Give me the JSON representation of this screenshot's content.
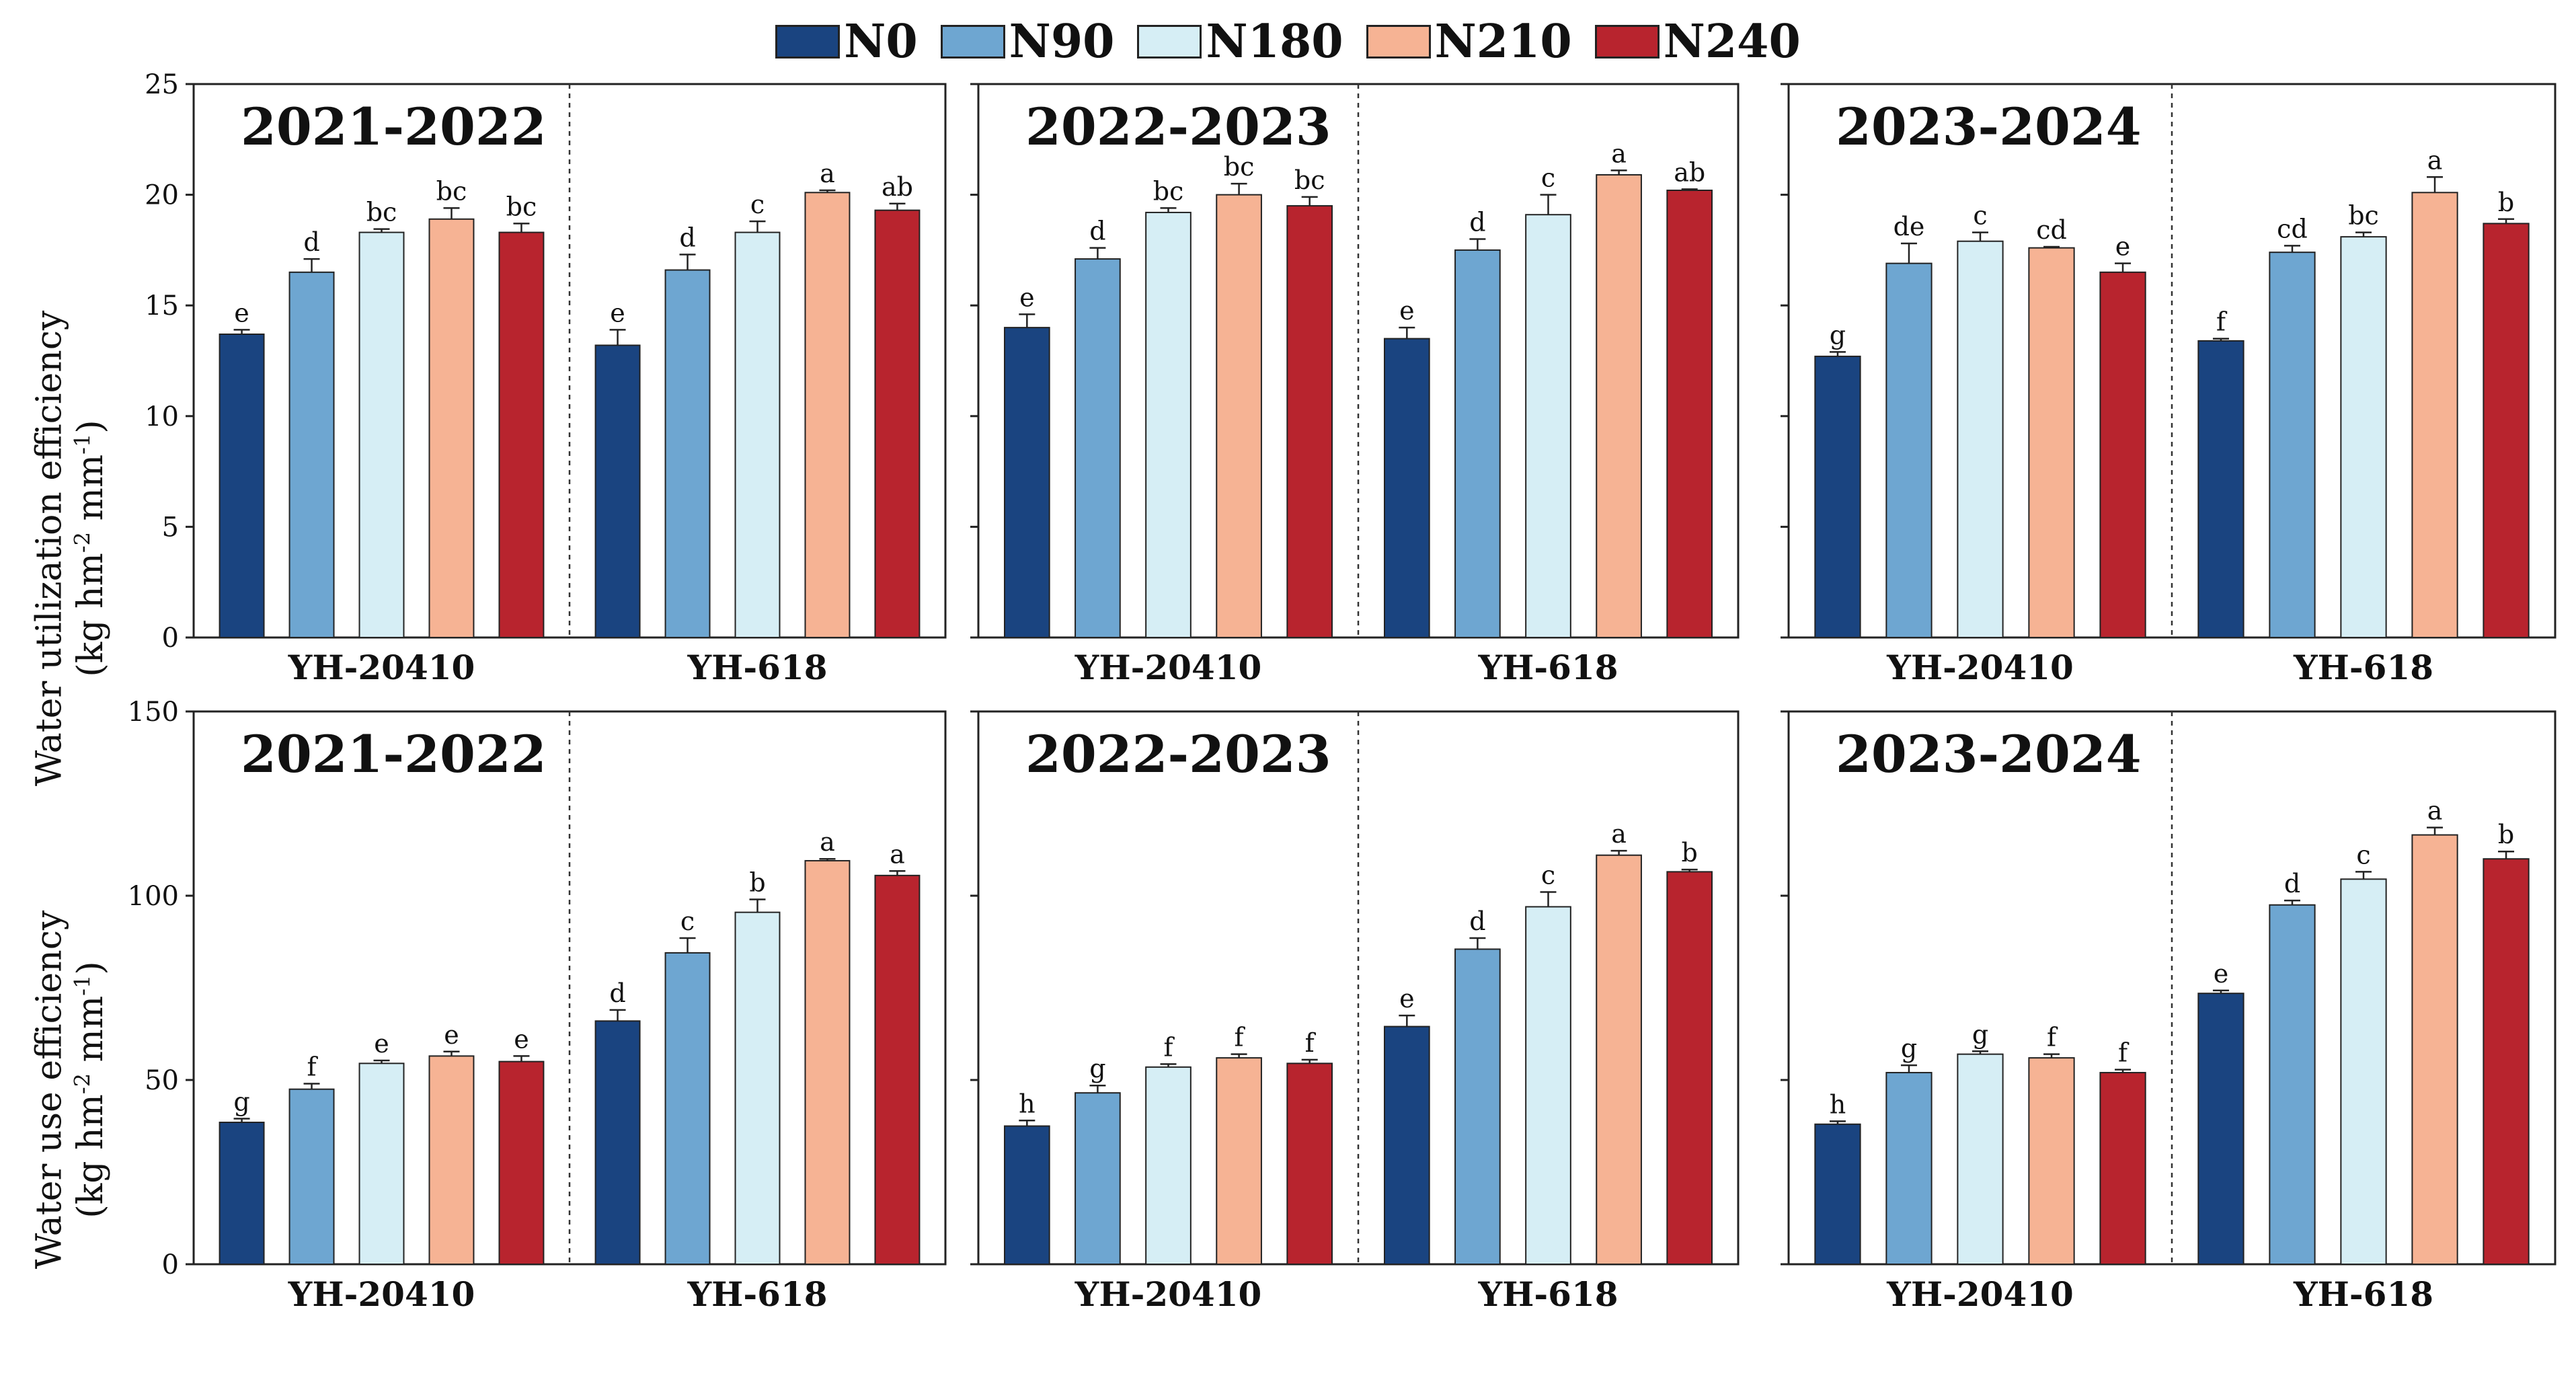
{
  "legend": [
    {
      "label": "N0",
      "color": "#1a4480"
    },
    {
      "label": "N90",
      "color": "#6ea6d1"
    },
    {
      "label": "N180",
      "color": "#d6eef5"
    },
    {
      "label": "N210",
      "color": "#f6b394"
    },
    {
      "label": "N240",
      "color": "#b8242e"
    }
  ],
  "rows": [
    {
      "ylabel_line1": "Water utilization efficiency",
      "ylabel_unit_pre": "(kg hm",
      "ylabel_unit_exp1": "-2",
      "ylabel_unit_mid": " mm",
      "ylabel_unit_exp2": "-1",
      "ylabel_unit_post": ")"
    },
    {
      "ylabel_line1": "Water use efficiency",
      "ylabel_unit_pre": "(kg hm",
      "ylabel_unit_exp1": "-2",
      "ylabel_unit_mid": " mm",
      "ylabel_unit_exp2": "-1",
      "ylabel_unit_post": ")"
    }
  ],
  "chart_data": [
    {
      "type": "bar",
      "row": 0,
      "col": 0,
      "title": "2021-2022",
      "ylabel": "Water utilization efficiency (kg hm-2 mm-1)",
      "ylim": [
        0,
        25
      ],
      "yticks": [
        "0",
        "5",
        "10",
        "15",
        "20",
        "25"
      ],
      "categories": [
        "YH-20410",
        "YH-618"
      ],
      "series": [
        {
          "name": "N0",
          "values": [
            13.7,
            13.2
          ],
          "errors": [
            0.2,
            0.7
          ],
          "letters": [
            "e",
            "e"
          ]
        },
        {
          "name": "N90",
          "values": [
            16.5,
            16.6
          ],
          "errors": [
            0.6,
            0.7
          ],
          "letters": [
            "d",
            "d"
          ]
        },
        {
          "name": "N180",
          "values": [
            18.3,
            18.3
          ],
          "errors": [
            0.15,
            0.5
          ],
          "letters": [
            "bc",
            "c"
          ]
        },
        {
          "name": "N210",
          "values": [
            18.9,
            20.1
          ],
          "errors": [
            0.5,
            0.1
          ],
          "letters": [
            "bc",
            "a"
          ]
        },
        {
          "name": "N240",
          "values": [
            18.3,
            19.3
          ],
          "errors": [
            0.4,
            0.3
          ],
          "letters": [
            "bc",
            "ab"
          ]
        }
      ]
    },
    {
      "type": "bar",
      "row": 0,
      "col": 1,
      "title": "2022-2023",
      "ylabel": "Water utilization efficiency (kg hm-2 mm-1)",
      "ylim": [
        0,
        25
      ],
      "yticks": [
        "",
        "",
        "",
        "",
        "",
        ""
      ],
      "categories": [
        "YH-20410",
        "YH-618"
      ],
      "series": [
        {
          "name": "N0",
          "values": [
            14.0,
            13.5
          ],
          "errors": [
            0.6,
            0.5
          ],
          "letters": [
            "e",
            "e"
          ]
        },
        {
          "name": "N90",
          "values": [
            17.1,
            17.5
          ],
          "errors": [
            0.5,
            0.5
          ],
          "letters": [
            "d",
            "d"
          ]
        },
        {
          "name": "N180",
          "values": [
            19.2,
            19.1
          ],
          "errors": [
            0.2,
            0.9
          ],
          "letters": [
            "bc",
            "c"
          ]
        },
        {
          "name": "N210",
          "values": [
            20.0,
            20.9
          ],
          "errors": [
            0.5,
            0.2
          ],
          "letters": [
            "bc",
            "a"
          ]
        },
        {
          "name": "N240",
          "values": [
            19.5,
            20.2
          ],
          "errors": [
            0.4,
            0.05
          ],
          "letters": [
            "bc",
            "ab"
          ]
        }
      ]
    },
    {
      "type": "bar",
      "row": 0,
      "col": 2,
      "title": "2023-2024",
      "ylabel": "Water utilization efficiency (kg hm-2 mm-1)",
      "ylim": [
        0,
        25
      ],
      "yticks": [
        "",
        "",
        "",
        "",
        "",
        ""
      ],
      "categories": [
        "YH-20410",
        "YH-618"
      ],
      "series": [
        {
          "name": "N0",
          "values": [
            12.7,
            13.4
          ],
          "errors": [
            0.2,
            0.1
          ],
          "letters": [
            "g",
            "f"
          ]
        },
        {
          "name": "N90",
          "values": [
            16.9,
            17.4
          ],
          "errors": [
            0.9,
            0.3
          ],
          "letters": [
            "de",
            "cd"
          ]
        },
        {
          "name": "N180",
          "values": [
            17.9,
            18.1
          ],
          "errors": [
            0.4,
            0.2
          ],
          "letters": [
            "c",
            "bc"
          ]
        },
        {
          "name": "N210",
          "values": [
            17.6,
            20.1
          ],
          "errors": [
            0.05,
            0.7
          ],
          "letters": [
            "cd",
            "a"
          ]
        },
        {
          "name": "N240",
          "values": [
            16.5,
            18.7
          ],
          "errors": [
            0.4,
            0.2
          ],
          "letters": [
            "e",
            "b"
          ]
        }
      ]
    },
    {
      "type": "bar",
      "row": 1,
      "col": 0,
      "title": "2021-2022",
      "ylabel": "Water use efficiency (kg hm-2 mm-1)",
      "ylim": [
        0,
        150
      ],
      "yticks": [
        "0",
        "50",
        "100",
        "150"
      ],
      "categories": [
        "YH-20410",
        "YH-618"
      ],
      "series": [
        {
          "name": "N0",
          "values": [
            38.5,
            66.0
          ],
          "errors": [
            1.0,
            3.0
          ],
          "letters": [
            "g",
            "d"
          ]
        },
        {
          "name": "N90",
          "values": [
            47.5,
            84.5
          ],
          "errors": [
            1.5,
            4.0
          ],
          "letters": [
            "f",
            "c"
          ]
        },
        {
          "name": "N180",
          "values": [
            54.5,
            95.5
          ],
          "errors": [
            0.8,
            3.5
          ],
          "letters": [
            "e",
            "b"
          ]
        },
        {
          "name": "N210",
          "values": [
            56.5,
            109.5
          ],
          "errors": [
            1.2,
            0.5
          ],
          "letters": [
            "e",
            "a"
          ]
        },
        {
          "name": "N240",
          "values": [
            55.0,
            105.5
          ],
          "errors": [
            1.5,
            1.2
          ],
          "letters": [
            "e",
            "a"
          ]
        }
      ]
    },
    {
      "type": "bar",
      "row": 1,
      "col": 1,
      "title": "2022-2023",
      "ylabel": "Water use efficiency (kg hm-2 mm-1)",
      "ylim": [
        0,
        150
      ],
      "yticks": [
        "",
        "",
        "",
        ""
      ],
      "categories": [
        "YH-20410",
        "YH-618"
      ],
      "series": [
        {
          "name": "N0",
          "values": [
            37.5,
            64.5
          ],
          "errors": [
            1.5,
            3.0
          ],
          "letters": [
            "h",
            "e"
          ]
        },
        {
          "name": "N90",
          "values": [
            46.5,
            85.5
          ],
          "errors": [
            2.0,
            3.0
          ],
          "letters": [
            "g",
            "d"
          ]
        },
        {
          "name": "N180",
          "values": [
            53.5,
            97.0
          ],
          "errors": [
            0.8,
            4.0
          ],
          "letters": [
            "f",
            "c"
          ]
        },
        {
          "name": "N210",
          "values": [
            56.0,
            111.0
          ],
          "errors": [
            1.0,
            1.2
          ],
          "letters": [
            "f",
            "a"
          ]
        },
        {
          "name": "N240",
          "values": [
            54.5,
            106.5
          ],
          "errors": [
            1.0,
            0.6
          ],
          "letters": [
            "f",
            "b"
          ]
        }
      ]
    },
    {
      "type": "bar",
      "row": 1,
      "col": 2,
      "title": "2023-2024",
      "ylabel": "Water use efficiency (kg hm-2 mm-1)",
      "ylim": [
        0,
        150
      ],
      "yticks": [
        "",
        "",
        "",
        ""
      ],
      "categories": [
        "YH-20410",
        "YH-618"
      ],
      "series": [
        {
          "name": "N0",
          "values": [
            38.0,
            73.5
          ],
          "errors": [
            0.8,
            0.8
          ],
          "letters": [
            "h",
            "e"
          ]
        },
        {
          "name": "N90",
          "values": [
            52.0,
            97.5
          ],
          "errors": [
            2.0,
            1.2
          ],
          "letters": [
            "g",
            "d"
          ]
        },
        {
          "name": "N180",
          "values": [
            57.0,
            104.5
          ],
          "errors": [
            0.8,
            2.0
          ],
          "letters": [
            "g",
            "c"
          ]
        },
        {
          "name": "N210",
          "values": [
            56.0,
            116.5
          ],
          "errors": [
            1.0,
            2.0
          ],
          "letters": [
            "f",
            "a"
          ]
        },
        {
          "name": "N240",
          "values": [
            52.0,
            110.0
          ],
          "errors": [
            0.8,
            2.0
          ],
          "letters": [
            "f",
            "b"
          ]
        }
      ]
    }
  ]
}
